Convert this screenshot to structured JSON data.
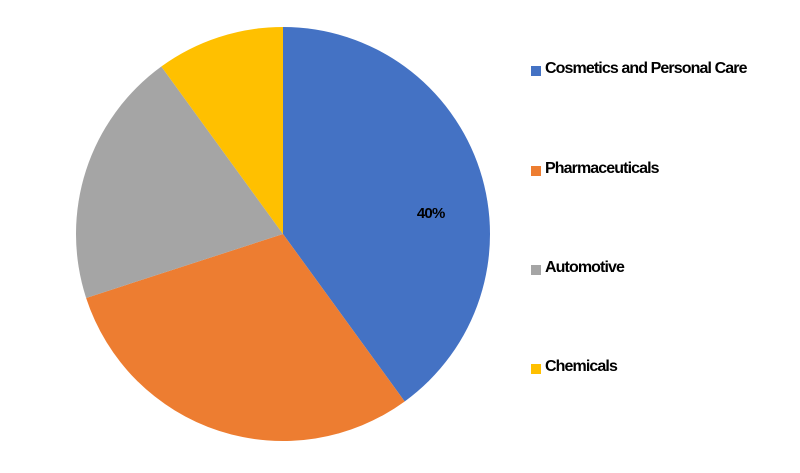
{
  "chart_data": {
    "type": "pie",
    "categories": [
      "Cosmetics and Personal Care",
      "Pharmaceuticals",
      "Automotive",
      "Chemicals"
    ],
    "values": [
      40,
      30,
      20,
      10
    ],
    "value_labels": [
      "40%",
      null,
      null,
      null
    ],
    "colors": [
      "#4472c4",
      "#ed7d31",
      "#a5a5a5",
      "#ffc000"
    ],
    "legend": "right"
  }
}
